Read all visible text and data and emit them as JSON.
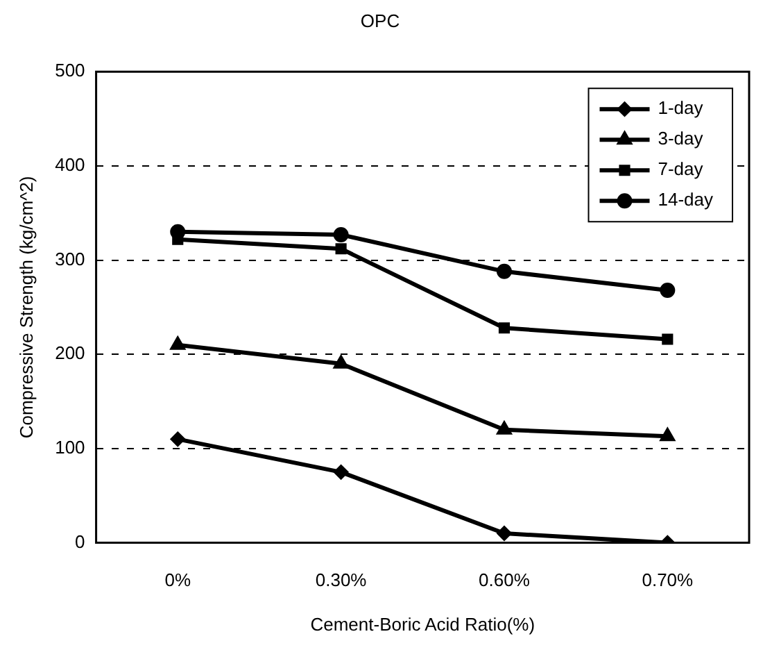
{
  "chart_data": {
    "type": "line",
    "title": "OPC",
    "xlabel": "Cement-Boric Acid Ratio(%)",
    "ylabel": "Compressive Strength (kg/cm^2)",
    "categories": [
      "0%",
      "0.30%",
      "0.60%",
      "0.70%"
    ],
    "series": [
      {
        "name": "1-day",
        "color": "#000000",
        "marker": "diamond",
        "values": [
          110,
          75,
          10,
          0
        ]
      },
      {
        "name": "3-day",
        "color": "#000000",
        "marker": "triangle",
        "values": [
          210,
          190,
          120,
          113
        ]
      },
      {
        "name": "7-day",
        "color": "#000000",
        "marker": "square",
        "values": [
          322,
          312,
          228,
          216
        ]
      },
      {
        "name": "14-day",
        "color": "#000000",
        "marker": "circle",
        "values": [
          330,
          327,
          288,
          268
        ]
      }
    ],
    "ylim": [
      0,
      500
    ],
    "yticks": [
      0,
      100,
      200,
      300,
      400,
      500
    ],
    "grid": "y",
    "legend": "top right",
    "line_style": "solid"
  }
}
